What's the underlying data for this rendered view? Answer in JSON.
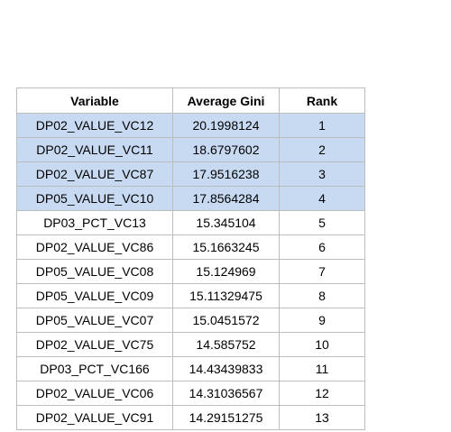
{
  "table": {
    "columns": [
      "Variable",
      "Average Gini",
      "Rank"
    ],
    "highlight_color": "#c8daf2",
    "rows": [
      {
        "variable": "DP02_VALUE_VC12",
        "gini": "20.1998124",
        "rank": "1",
        "highlighted": true
      },
      {
        "variable": "DP02_VALUE_VC11",
        "gini": "18.6797602",
        "rank": "2",
        "highlighted": true
      },
      {
        "variable": "DP02_VALUE_VC87",
        "gini": "17.9516238",
        "rank": "3",
        "highlighted": true
      },
      {
        "variable": "DP05_VALUE_VC10",
        "gini": "17.8564284",
        "rank": "4",
        "highlighted": true
      },
      {
        "variable": "DP03_PCT_VC13",
        "gini": "15.345104",
        "rank": "5",
        "highlighted": false
      },
      {
        "variable": "DP02_VALUE_VC86",
        "gini": "15.1663245",
        "rank": "6",
        "highlighted": false
      },
      {
        "variable": "DP05_VALUE_VC08",
        "gini": "15.124969",
        "rank": "7",
        "highlighted": false
      },
      {
        "variable": "DP05_VALUE_VC09",
        "gini": "15.11329475",
        "rank": "8",
        "highlighted": false
      },
      {
        "variable": "DP05_VALUE_VC07",
        "gini": "15.0451572",
        "rank": "9",
        "highlighted": false
      },
      {
        "variable": "DP02_VALUE_VC75",
        "gini": "14.585752",
        "rank": "10",
        "highlighted": false
      },
      {
        "variable": "DP03_PCT_VC166",
        "gini": "14.43439833",
        "rank": "11",
        "highlighted": false
      },
      {
        "variable": "DP02_VALUE_VC06",
        "gini": "14.31036567",
        "rank": "12",
        "highlighted": false
      },
      {
        "variable": "DP02_VALUE_VC91",
        "gini": "14.29151275",
        "rank": "13",
        "highlighted": false
      }
    ]
  }
}
